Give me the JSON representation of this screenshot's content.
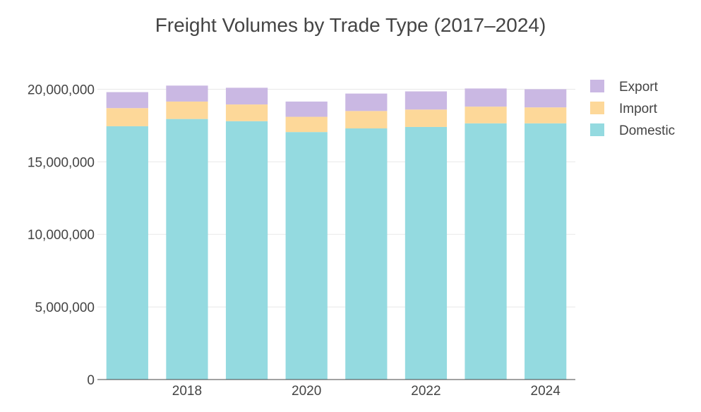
{
  "chart_data": {
    "type": "bar",
    "stacked": true,
    "title": "Freight Volumes by Trade Type (2017–2024)",
    "categories": [
      "2017",
      "2018",
      "2019",
      "2020",
      "2021",
      "2022",
      "2023",
      "2024"
    ],
    "series": [
      {
        "name": "Domestic",
        "color": "#94DAE0",
        "values": [
          17450000,
          17950000,
          17800000,
          17050000,
          17300000,
          17400000,
          17650000,
          17650000
        ]
      },
      {
        "name": "Import",
        "color": "#FDD899",
        "values": [
          1250000,
          1200000,
          1150000,
          1050000,
          1200000,
          1200000,
          1150000,
          1100000
        ]
      },
      {
        "name": "Export",
        "color": "#CAB8E3",
        "values": [
          1100000,
          1100000,
          1150000,
          1050000,
          1200000,
          1250000,
          1250000,
          1250000
        ]
      }
    ],
    "x_tick_labels": [
      "2018",
      "2020",
      "2022",
      "2024"
    ],
    "y_tick_labels": [
      "0",
      "5,000,000",
      "10,000,000",
      "15,000,000",
      "20,000,000"
    ],
    "y_ticks": [
      0,
      5000000,
      10000000,
      15000000,
      20000000
    ],
    "ylim": [
      0,
      20800000
    ],
    "grid": true,
    "legend_position": "top-right",
    "legend_order": [
      "Export",
      "Import",
      "Domestic"
    ]
  }
}
